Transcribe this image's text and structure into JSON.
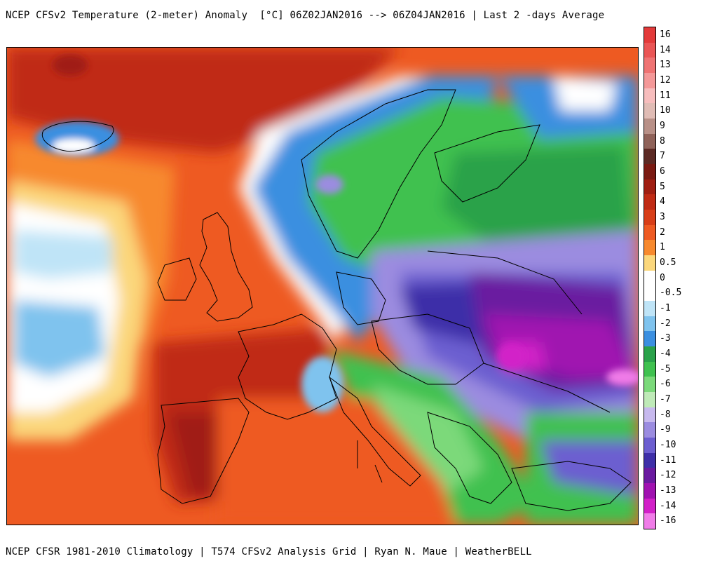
{
  "header": {
    "title": "NCEP CFSv2 Temperature (2-meter) Anomaly  [°C] 06Z02JAN2016 --> 06Z04JAN2016 | Last 2 -days Average"
  },
  "footer": {
    "credits": "NCEP CFSR 1981-2010 Climatology | T574 CFSv2 Analysis Grid | Ryan N. Maue | WeatherBELL"
  },
  "legend": {
    "levels": [
      {
        "label": "16",
        "color": "#e33a3a"
      },
      {
        "label": "14",
        "color": "#ea5555"
      },
      {
        "label": "13",
        "color": "#ef7373"
      },
      {
        "label": "12",
        "color": "#f49898"
      },
      {
        "label": "11",
        "color": "#f7bdbd"
      },
      {
        "label": "10",
        "color": "#e0bcb5"
      },
      {
        "label": "9",
        "color": "#b89087"
      },
      {
        "label": "8",
        "color": "#8f6259"
      },
      {
        "label": "7",
        "color": "#5c2a24"
      },
      {
        "label": "6",
        "color": "#7a1a12"
      },
      {
        "label": "5",
        "color": "#a01e12"
      },
      {
        "label": "4",
        "color": "#c02a14"
      },
      {
        "label": "3",
        "color": "#d83e18"
      },
      {
        "label": "2",
        "color": "#ee5a22"
      },
      {
        "label": "1",
        "color": "#f7892e"
      },
      {
        "label": "0.5",
        "color": "#fbd77c"
      },
      {
        "label": "0",
        "color": "#ffffff"
      },
      {
        "label": "-0.5",
        "color": "#ffffff"
      },
      {
        "label": "-1",
        "color": "#bfe4f7"
      },
      {
        "label": "-2",
        "color": "#7fc3ee"
      },
      {
        "label": "-3",
        "color": "#3b8fe0"
      },
      {
        "label": "-4",
        "color": "#2aa24a"
      },
      {
        "label": "-5",
        "color": "#3fc14f"
      },
      {
        "label": "-6",
        "color": "#7bd97a"
      },
      {
        "label": "-7",
        "color": "#bfeab8"
      },
      {
        "label": "-8",
        "color": "#c7b9ee"
      },
      {
        "label": "-9",
        "color": "#9b8ce0"
      },
      {
        "label": "-10",
        "color": "#6c5ed0"
      },
      {
        "label": "-11",
        "color": "#3e2fa8"
      },
      {
        "label": "-12",
        "color": "#6a1aa0"
      },
      {
        "label": "-13",
        "color": "#a012b0"
      },
      {
        "label": "-14",
        "color": "#d220c8"
      },
      {
        "label": "-16",
        "color": "#f07ce8"
      }
    ]
  }
}
